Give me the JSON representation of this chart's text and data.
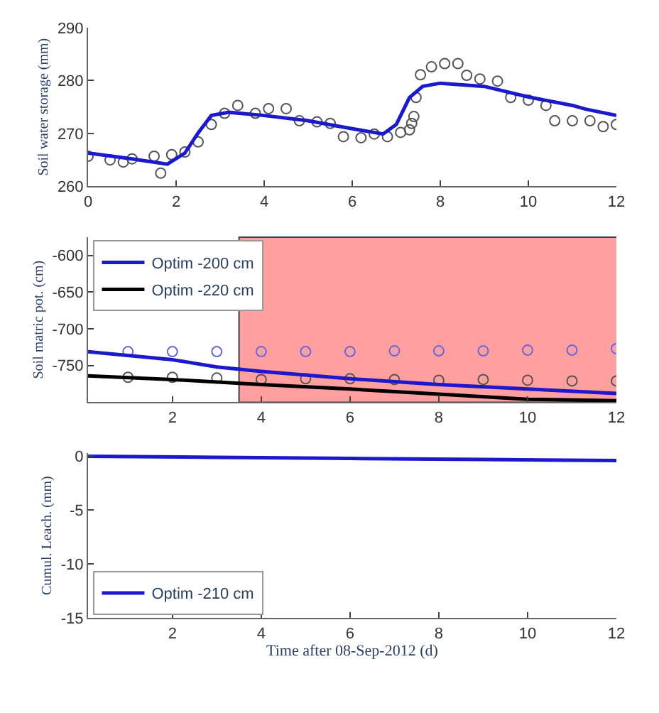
{
  "chart_data": [
    {
      "type": "line",
      "ylabel": "Soil water storage (mm)",
      "xlim": [
        0,
        12
      ],
      "xticks": [
        0,
        2,
        4,
        6,
        8,
        10,
        12
      ],
      "ylim": [
        260,
        290
      ],
      "yticks": [
        260,
        270,
        280,
        290
      ],
      "grid": false,
      "legend": false,
      "series": [
        {
          "type": "scatter",
          "marker": "circle",
          "color": "#555555",
          "x": [
            0,
            0.5,
            0.8,
            1.0,
            1.5,
            1.65,
            1.9,
            2.2,
            2.5,
            2.8,
            3.1,
            3.4,
            3.8,
            4.1,
            4.5,
            4.8,
            5.2,
            5.5,
            5.8,
            6.2,
            6.5,
            6.8,
            7.1,
            7.3,
            7.35,
            7.4,
            7.45,
            7.55,
            7.8,
            8.1,
            8.4,
            8.6,
            8.9,
            9.3,
            9.6,
            10,
            10.4,
            10.6,
            11,
            11.4,
            11.7,
            12
          ],
          "values": [
            265.7,
            265.0,
            264.6,
            265.2,
            265.7,
            262.5,
            266.0,
            266.5,
            268.4,
            271.7,
            273.8,
            275.3,
            273.8,
            274.7,
            274.7,
            272.4,
            272.2,
            271.9,
            269.4,
            269.2,
            269.9,
            269.4,
            270.2,
            270.7,
            271.9,
            273.2,
            276.8,
            281.1,
            282.6,
            283.2,
            283.2,
            281.0,
            280.3,
            279.9,
            276.8,
            276.3,
            275.3,
            272.4,
            272.4,
            272.4,
            271.3,
            271.7
          ]
        },
        {
          "marker": "none",
          "color": "#1a1acc",
          "x": [
            0,
            1,
            1.8,
            2.2,
            2.5,
            2.8,
            3.2,
            4,
            5,
            6,
            6.7,
            7.0,
            7.3,
            7.6,
            8,
            9,
            10,
            11,
            11.3,
            12
          ],
          "values": [
            266.3,
            265.2,
            264.2,
            266.3,
            270.1,
            273.4,
            274.0,
            273.4,
            272.4,
            270.9,
            269.9,
            271.7,
            276.8,
            278.9,
            279.5,
            278.9,
            276.9,
            275.3,
            274.6,
            273.4
          ]
        }
      ]
    },
    {
      "type": "line",
      "ylabel": "Soil matric pot. (cm)",
      "xlim": [
        0.1,
        12
      ],
      "xticks": [
        2,
        4,
        6,
        8,
        10,
        12
      ],
      "ylim": [
        -800,
        -575
      ],
      "yticks": [
        -600,
        -650,
        -700,
        -750
      ],
      "grid": false,
      "legend": "top left",
      "bands": [
        {
          "axis": "x",
          "from": 3.5,
          "to": 12.1,
          "color": "#ff8080"
        }
      ],
      "series": [
        {
          "type": "scatter",
          "marker": "circle",
          "color": "#6666dd",
          "x": [
            1,
            2,
            3,
            4,
            5,
            6,
            7,
            8,
            9,
            10,
            11,
            12
          ],
          "values": [
            -731,
            -731,
            -731,
            -731,
            -731,
            -731,
            -730,
            -730,
            -730,
            -729,
            -729,
            -727
          ]
        },
        {
          "type": "scatter",
          "marker": "circle",
          "color": "#555555",
          "x": [
            1,
            2,
            3,
            4,
            5,
            6,
            7,
            8,
            9,
            10,
            11,
            12
          ],
          "values": [
            -766,
            -766,
            -767,
            -769,
            -768,
            -768,
            -769,
            -770,
            -769,
            -770,
            -771,
            -771
          ]
        },
        {
          "marker": "none",
          "name": "Optim -200 cm",
          "color": "#1a1acc",
          "x": [
            0.1,
            2,
            3,
            4,
            6,
            8,
            10,
            12
          ],
          "values": [
            -731,
            -742,
            -752,
            -758,
            -768,
            -776,
            -782,
            -788
          ]
        },
        {
          "marker": "none",
          "name": "Optim -220 cm",
          "color": "#000000",
          "x": [
            0.1,
            2,
            4,
            6,
            8,
            10,
            12
          ],
          "values": [
            -764,
            -769,
            -776,
            -782,
            -789,
            -796,
            -798
          ]
        }
      ]
    },
    {
      "type": "line",
      "xlabel": "Time after 08-Sep-2012 (d)",
      "ylabel": "Cumul. Leach. (mm)",
      "xlim": [
        0.1,
        12
      ],
      "xticks": [
        2,
        4,
        6,
        8,
        10,
        12
      ],
      "ylim": [
        -15,
        0.3
      ],
      "yticks": [
        0,
        -5,
        -10,
        -15
      ],
      "grid": false,
      "legend": "bottom left",
      "series": [
        {
          "marker": "none",
          "name": "Optim -210 cm",
          "color": "#1a1acc",
          "x": [
            0.1,
            3,
            6,
            9,
            12
          ],
          "values": [
            0,
            -0.1,
            -0.2,
            -0.3,
            -0.4
          ]
        }
      ]
    }
  ]
}
